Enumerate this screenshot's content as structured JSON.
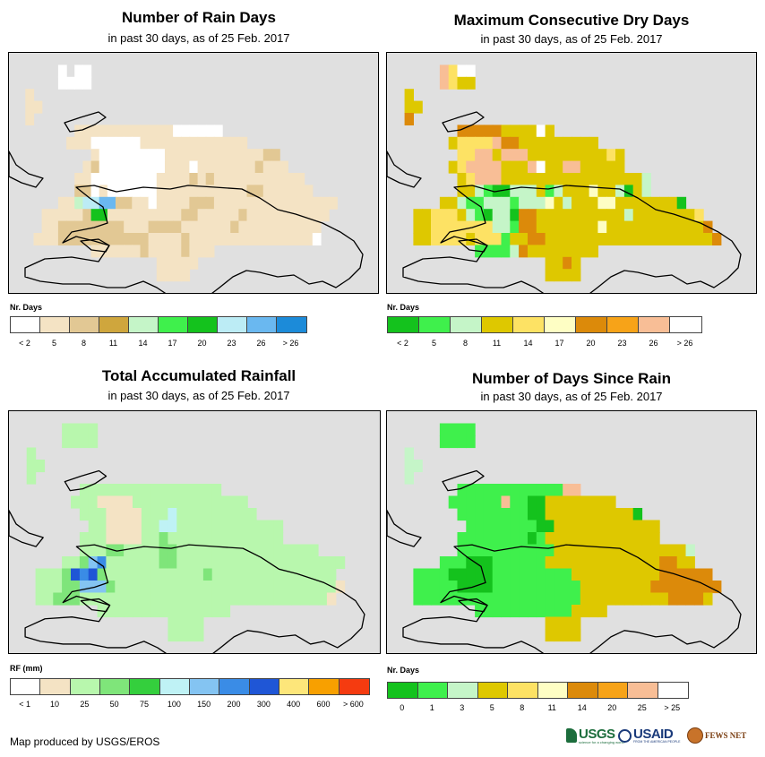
{
  "footer": "Map produced by USGS/EROS",
  "logos": {
    "usgs": "USGS",
    "usgs_tagline": "science for a changing world",
    "usaid": "USAID",
    "usaid_tagline": "FROM THE AMERICAN PEOPLE",
    "fewsnet": "FEWS NET"
  },
  "panels": [
    {
      "id": "rain-days",
      "title": "Number of Rain Days",
      "subtitle": "in past 30 days, as of 25 Feb. 2017",
      "legend_title": "Nr. Days",
      "legend_labels": [
        "< 2",
        "5",
        "8",
        "11",
        "14",
        "17",
        "20",
        "23",
        "26",
        "> 26"
      ],
      "legend_colors": [
        "#ffffff",
        "#f4e3c4",
        "#e2c894",
        "#cfa63d",
        "#c5f5c8",
        "#3ff04c",
        "#14c21d",
        "#bcecf5",
        "#6ab8f0",
        "#1c8bd9"
      ],
      "cells": [
        "..........................................",
        "......0.00................................",
        "......0000................................",
        "..1..........................................",
        "..11......................................",
        "..1.......................................",
        "........111111111111000000................",
        ".......1110000001111111111111.............",
        "..........10000000011111111111122.........",
        ".........1200000000111011111112111........",
        "........1100000000111121211111111111......",
        "........22010000001111111111122111111.....",
        "......1147788221101111222111111111111111..",
        "....11111266111111111221111121111111111...",
        "....1122222222111222211111121111111111....",
        "...11122222222222111121111111111111110....",
        "..........111111211112111.................",
        "..................11111...................",
        "..................1111....................",
        ".........................................."
      ]
    },
    {
      "id": "max-dry-days",
      "title": "Maximum Consecutive Dry Days",
      "subtitle": "in past 30 days, as of 25 Feb. 2017",
      "legend_title": "Nr. Days",
      "legend_labels": [
        "< 2",
        "5",
        "8",
        "11",
        "14",
        "17",
        "20",
        "23",
        "26",
        "> 26"
      ],
      "legend_colors": [
        "#14c21d",
        "#3ff04c",
        "#c5f5c8",
        "#dec800",
        "#fde264",
        "#fefec4",
        "#dc8a0a",
        "#f7a318",
        "#f8be96",
        "#ffffff"
      ],
      "cells": [
        "..........................................",
        "......8499................................",
        "......8433................................",
        "..3.......................................",
        "..33......................................",
        "..6.......................................",
        "........66666333393.......................",
        ".......34444866333333333..................",
        "........4488388833333333343...............",
        ".......34888833389338833333...............",
        "........3488833333333333333332............",
        "........3321002223123335332032............",
        "......3321122212225323335533333330........",
        "...334443210220663333333333233333334......",
        "...3344444442216633333335333333333336.....",
        "...33444434441336633333333333333333336....",
        "..........11112633333333..................",
        "..................3363....................",
        "..................3333....................",
        ".........................................."
      ]
    },
    {
      "id": "total-rainfall",
      "title": "Total Accumulated Rainfall",
      "subtitle": "in past 30 days, as of 25 Feb. 2017",
      "legend_title": "RF (mm)",
      "legend_labels": [
        "< 1",
        "10",
        "25",
        "50",
        "75",
        "100",
        "150",
        "200",
        "300",
        "400",
        "600",
        "> 600"
      ],
      "legend_colors": [
        "#ffffff",
        "#f4e3c4",
        "#b8f7ad",
        "#7fe57a",
        "#34cf3d",
        "#bff2f5",
        "#84c4f2",
        "#3a8ce6",
        "#1f56d6",
        "#fde67a",
        "#f8a000",
        "#f53b10"
      ],
      "cells": [
        "..........................................",
        "......2222................................",
        "......2222................................",
        "..2.......................................",
        "..22......................................",
        "..2.......................................",
        "........2222222222222222..................",
        ".......22211112222222222222...............",
        "........22211112225222222222..............",
        ".........2211112255222222222222...........",
        "........22211112232222222222222...........",
        "........222332222332222222222222222.......",
        "......22367222222332222222222222222222....",
        "...2223878322222222222322222222222222.....",
        "...22233666322222222222222222222222221....",
        "...2233322222222222222222222222222221.....",
        "..........222222222222222.................",
        "..................2222....................",
        "..................2222....................",
        ".........................................."
      ]
    },
    {
      "id": "days-since-rain",
      "title": "Number of Days Since Rain",
      "subtitle": "in past 30 days, as of 25 Feb. 2017",
      "legend_title": "Nr. Days",
      "legend_labels": [
        "0",
        "1",
        "3",
        "5",
        "8",
        "11",
        "14",
        "20",
        "25",
        "> 25"
      ],
      "legend_colors": [
        "#14c21d",
        "#3ff04c",
        "#c5f5c8",
        "#dec800",
        "#fde264",
        "#fefec4",
        "#dc8a0a",
        "#f7a318",
        "#f8be96",
        "#ffffff"
      ],
      "cells": [
        "..........................................",
        "......1111................................",
        "......1111................................",
        "..2.......................................",
        "..22......................................",
        "..2.......................................",
        "........11111111111188....................",
        ".......1111118110033333333................",
        "........111111110033333333330.............",
        ".........1111111100333333333333...........",
        "........11111111013333333333333...........",
        "........111111111113333333333333332.......",
        "......11100011111133333333333336633.......",
        "...1111000001111111113333333333666666.....",
        "...11111000011111111113333333366666666....",
        "...1111111111111111111333333333366663.....",
        "..........111111111113333.................",
        "..................3333....................",
        "..................3333....................",
        ".........................................."
      ]
    }
  ]
}
